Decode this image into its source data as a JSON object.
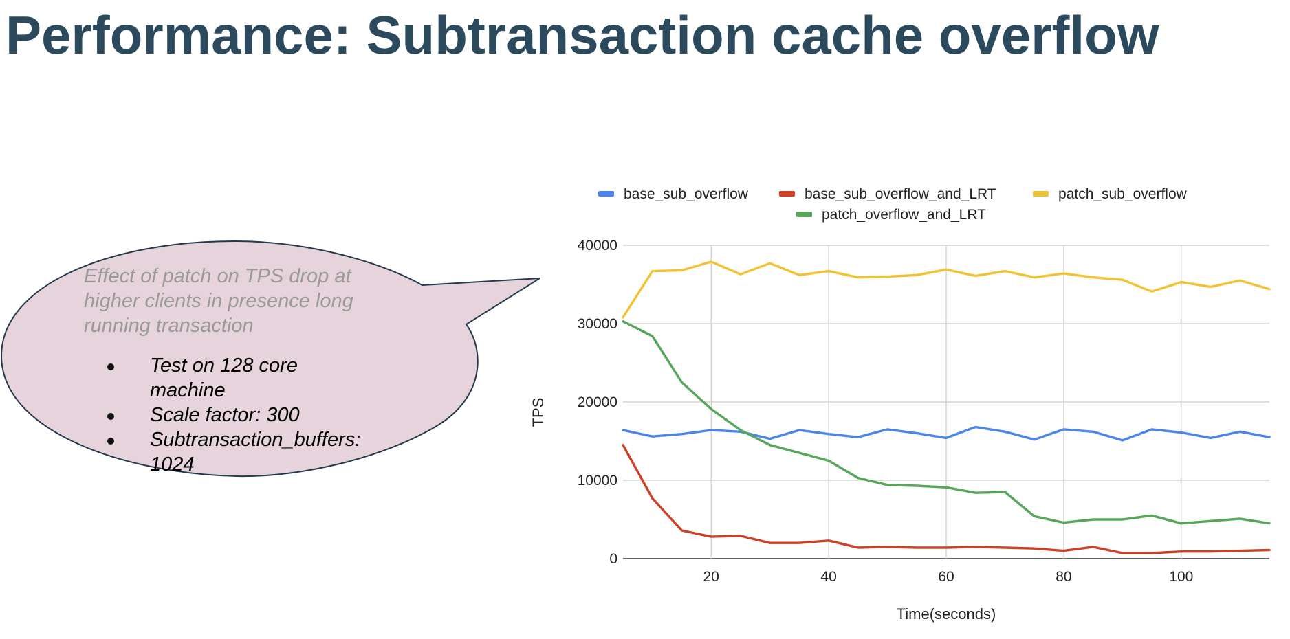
{
  "slide": {
    "title": "Performance: Subtransaction cache overflow"
  },
  "callout": {
    "lead": "Effect of patch on TPS drop at higher clients in presence long running transaction",
    "bullets": [
      "Test on 128 core machine",
      "Scale factor: 300",
      "Subtransaction_buffers: 1024"
    ],
    "fill_color": "#e6d3dc",
    "stroke_color": "#233a4e"
  },
  "chart_data": {
    "type": "line",
    "title": "",
    "xlabel": "Time(seconds)",
    "ylabel": "TPS",
    "xlim": [
      5,
      115
    ],
    "ylim": [
      0,
      40000
    ],
    "x_ticks": [
      20,
      40,
      60,
      80,
      100
    ],
    "y_ticks": [
      0,
      10000,
      20000,
      30000,
      40000
    ],
    "grid": true,
    "legend_position": "top",
    "x": [
      5,
      10,
      15,
      20,
      25,
      30,
      35,
      40,
      45,
      50,
      55,
      60,
      65,
      70,
      75,
      80,
      85,
      90,
      95,
      100,
      105,
      110,
      115
    ],
    "series": [
      {
        "name": "base_sub_overflow",
        "color": "#4a86e8",
        "values": [
          16400,
          15600,
          15900,
          16400,
          16200,
          15300,
          16400,
          15900,
          15500,
          16500,
          16000,
          15400,
          16800,
          16200,
          15200,
          16500,
          16200,
          15100,
          16500,
          16100,
          15400,
          16200,
          15500
        ]
      },
      {
        "name": "base_sub_overflow_and_LRT",
        "color": "#cc4125",
        "values": [
          14500,
          7700,
          3600,
          2800,
          2900,
          2000,
          2000,
          2300,
          1400,
          1500,
          1400,
          1400,
          1500,
          1400,
          1300,
          1000,
          1500,
          700,
          700,
          900,
          900,
          1000,
          1100
        ]
      },
      {
        "name": "patch_sub_overflow",
        "color": "#f1c232",
        "values": [
          30800,
          36700,
          36800,
          37900,
          36300,
          37700,
          36200,
          36700,
          35900,
          36000,
          36200,
          36900,
          36100,
          36700,
          35900,
          36400,
          35900,
          35600,
          34100,
          35300,
          34700,
          35500,
          34400
        ]
      },
      {
        "name": "patch_overflow_and_LRT",
        "color": "#57a55a",
        "values": [
          30300,
          28400,
          22500,
          19100,
          16400,
          14500,
          13500,
          12500,
          10300,
          9400,
          9300,
          9100,
          8400,
          8500,
          5400,
          4600,
          5000,
          5000,
          5500,
          4500,
          4800,
          5100,
          4500
        ]
      }
    ]
  }
}
